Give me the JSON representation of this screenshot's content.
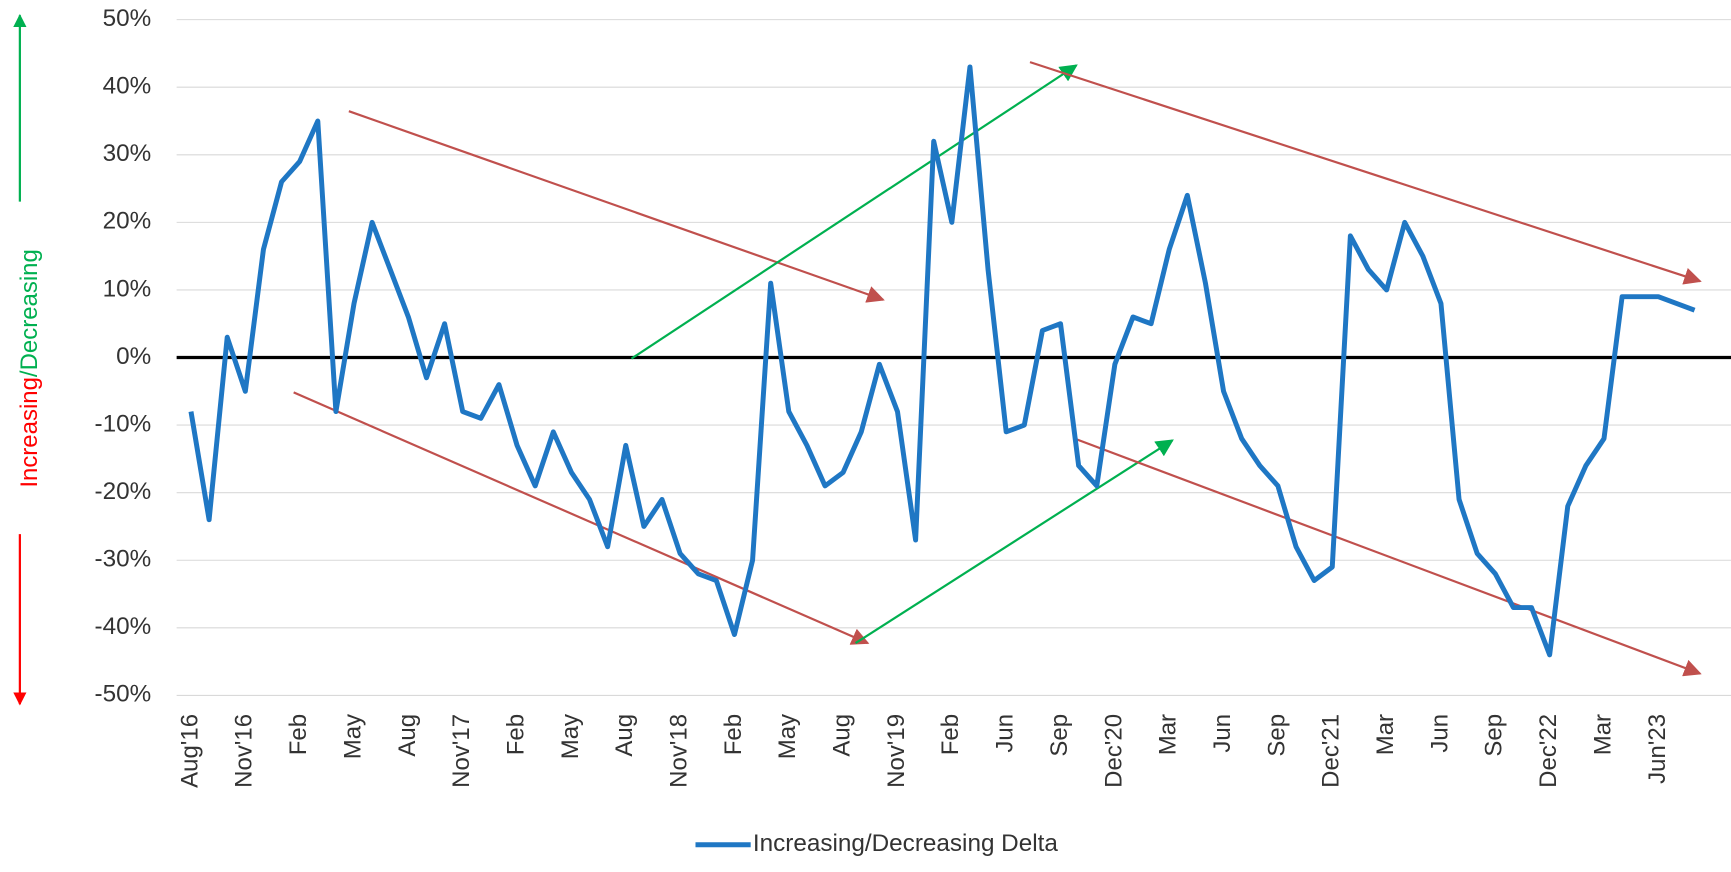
{
  "chart_data": {
    "type": "line",
    "categories": [
      "Aug'16",
      null,
      null,
      "Nov'16",
      null,
      null,
      "Feb",
      null,
      null,
      "May",
      null,
      null,
      "Aug",
      null,
      null,
      "Nov'17",
      null,
      null,
      "Feb",
      null,
      null,
      "May",
      null,
      null,
      "Aug",
      null,
      null,
      "Nov'18",
      null,
      null,
      "Feb",
      null,
      null,
      "May",
      null,
      null,
      "Aug",
      null,
      null,
      "Nov'19",
      null,
      null,
      "Feb",
      null,
      null,
      "Jun",
      null,
      null,
      "Sep",
      null,
      null,
      "Dec'20",
      null,
      null,
      "Mar",
      null,
      null,
      "Jun",
      null,
      null,
      "Sep",
      null,
      null,
      "Dec'21",
      null,
      null,
      "Mar",
      null,
      null,
      "Jun",
      null,
      null,
      "Sep",
      null,
      null,
      "Dec'22",
      null,
      null,
      "Mar",
      null,
      null,
      "Jun'23",
      null,
      null
    ],
    "series": [
      {
        "name": "Increasing/Decreasing Delta",
        "color": "#1f77c4",
        "values": [
          -8,
          -24,
          3,
          -5,
          16,
          26,
          29,
          35,
          -8,
          8,
          20,
          13,
          6,
          -3,
          5,
          -8,
          -9,
          -4,
          -13,
          -19,
          -11,
          -17,
          -21,
          -28,
          -13,
          -25,
          -21,
          -29,
          -32,
          -33,
          -41,
          -30,
          11,
          -8,
          -13,
          -19,
          -17,
          -11,
          -1,
          -8,
          -27,
          32,
          20,
          43,
          13,
          -11,
          -10,
          4,
          5,
          -16,
          -19,
          -1,
          6,
          5,
          16,
          24,
          11,
          -5,
          -12,
          -16,
          -19,
          -28,
          -33,
          -31,
          18,
          13,
          10,
          20,
          15,
          8,
          -21,
          -29,
          -32,
          -37,
          -37,
          -44,
          -22,
          -16,
          -12,
          9,
          9,
          9,
          8,
          7
        ]
      }
    ],
    "ylim": [
      -50,
      50
    ],
    "yticks": [
      {
        "value": -50,
        "label": "-50%"
      },
      {
        "value": -40,
        "label": "-40%"
      },
      {
        "value": -30,
        "label": "-30%"
      },
      {
        "value": -20,
        "label": "-20%"
      },
      {
        "value": -10,
        "label": "-10%"
      },
      {
        "value": 0,
        "label": "0%"
      },
      {
        "value": 10,
        "label": "10%"
      },
      {
        "value": 20,
        "label": "20%"
      },
      {
        "value": 30,
        "label": "30%"
      },
      {
        "value": 40,
        "label": "40%"
      },
      {
        "value": 50,
        "label": "50%"
      }
    ],
    "grid": true,
    "legend": "bottom",
    "side_label": [
      "Increasing",
      "/Decreasing"
    ]
  }
}
